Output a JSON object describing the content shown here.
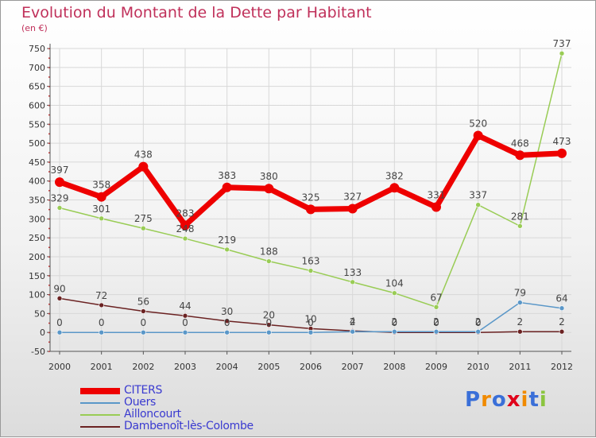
{
  "title": "Evolution du Montant de la Dette par Habitant",
  "unit_label": "(en €)",
  "logo_text": "Proxiti",
  "colors": {
    "title": "#c0305a",
    "legend_text": "#3a3ad0",
    "axis": "#555555",
    "grid": "#d8d8d8"
  },
  "chart_data": {
    "type": "line",
    "title": "Evolution du Montant de la Dette par Habitant",
    "ylabel": "(en €)",
    "xlabel": "",
    "categories": [
      "2000",
      "2001",
      "2002",
      "2003",
      "2004",
      "2005",
      "2006",
      "2007",
      "2008",
      "2009",
      "2010",
      "2011",
      "2012"
    ],
    "ylim": [
      -50,
      750
    ],
    "yticks": [
      -50,
      0,
      50,
      100,
      150,
      200,
      250,
      300,
      350,
      400,
      450,
      500,
      550,
      600,
      650,
      700,
      750
    ],
    "grid": true,
    "legend_position": "bottom-left",
    "series": [
      {
        "name": "CITERS",
        "color": "#ee0000",
        "values": [
          397,
          358,
          438,
          283,
          383,
          380,
          325,
          327,
          382,
          331,
          520,
          468,
          473
        ]
      },
      {
        "name": "Ouers",
        "color": "#5a97c8",
        "values": [
          0,
          0,
          0,
          0,
          0,
          0,
          0,
          2,
          2,
          2,
          2,
          79,
          64
        ]
      },
      {
        "name": "Ailloncourt",
        "color": "#99cc55",
        "values": [
          329,
          301,
          275,
          248,
          219,
          188,
          163,
          133,
          104,
          67,
          337,
          281,
          737
        ]
      },
      {
        "name": "Dambenoît-lès-Colombe",
        "color": "#6b2222",
        "values": [
          90,
          72,
          56,
          44,
          30,
          20,
          10,
          4,
          0,
          0,
          0,
          2,
          2
        ]
      }
    ],
    "data_labels": [
      [
        "397",
        "358",
        "438",
        "283",
        "383",
        "380",
        "325",
        "327",
        "382",
        "331",
        "520",
        "468",
        "473"
      ],
      [
        "0",
        "0",
        "0",
        "0",
        "0",
        "0",
        "0",
        "2",
        "2",
        "2",
        "2",
        "79",
        "64"
      ],
      [
        "329",
        "301",
        "275",
        "248",
        "219",
        "188",
        "163",
        "133",
        "104",
        "67",
        "337",
        "281",
        "737"
      ],
      [
        "90",
        "72",
        "56",
        "44",
        "30",
        "20",
        "10",
        "4",
        "0",
        "0",
        "0",
        "2",
        "2"
      ]
    ]
  }
}
